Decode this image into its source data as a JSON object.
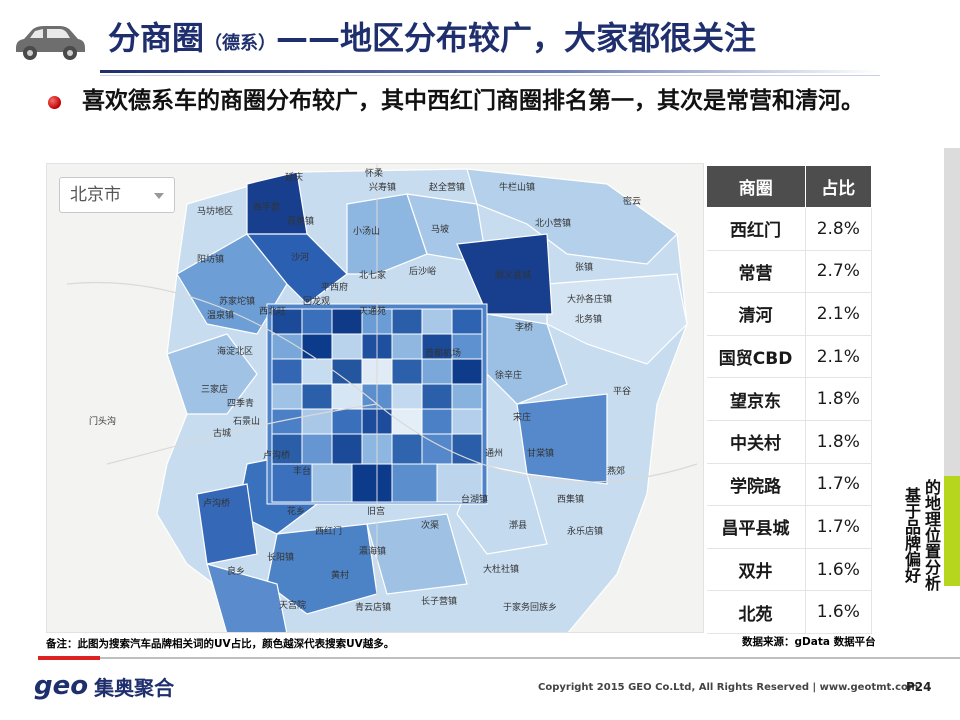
{
  "header": {
    "title_main": "分商圈",
    "title_sub": "（德系）",
    "title_rest": "——地区分布较广，大家都很关注"
  },
  "bullet": {
    "text": "喜欢德系车的商圈分布较广，其中西红门商圈排名第一，其次是常营和清河。"
  },
  "map": {
    "city_select": "北京市",
    "places": [
      {
        "label": "延庆"
      },
      {
        "label": "怀柔"
      },
      {
        "label": "兴寿镇"
      },
      {
        "label": "赵全营镇"
      },
      {
        "label": "牛栏山镇"
      },
      {
        "label": "马坊地区"
      },
      {
        "label": "西手营"
      },
      {
        "label": "小汤山"
      },
      {
        "label": "马坡"
      },
      {
        "label": "北小营镇"
      },
      {
        "label": "百善镇"
      },
      {
        "label": "阳坊镇"
      },
      {
        "label": "沙河"
      },
      {
        "label": "北七家"
      },
      {
        "label": "后沙峪"
      },
      {
        "label": "顺义县城"
      },
      {
        "label": "张镇"
      },
      {
        "label": "大孙各庄镇"
      },
      {
        "label": "北务镇"
      },
      {
        "label": "苏家坨镇"
      },
      {
        "label": "温泉镇"
      },
      {
        "label": "西北旺"
      },
      {
        "label": "回龙观"
      },
      {
        "label": "天通苑"
      },
      {
        "label": "平西府"
      },
      {
        "label": "李桥"
      },
      {
        "label": "海淀北区"
      },
      {
        "label": "三家店"
      },
      {
        "label": "四季青"
      },
      {
        "label": "首都机场"
      },
      {
        "label": "徐辛庄"
      },
      {
        "label": "宋庄"
      },
      {
        "label": "门头沟"
      },
      {
        "label": "古城"
      },
      {
        "label": "石景山"
      },
      {
        "label": "通州"
      },
      {
        "label": "甘棠镇"
      },
      {
        "label": "卢沟桥"
      },
      {
        "label": "丰台"
      },
      {
        "label": "台湖镇"
      },
      {
        "label": "西集镇"
      },
      {
        "label": "卢沟桥"
      },
      {
        "label": "花乡"
      },
      {
        "label": "旧宫"
      },
      {
        "label": "次渠"
      },
      {
        "label": "漷县"
      },
      {
        "label": "长阳镇"
      },
      {
        "label": "黄村"
      },
      {
        "label": "瀛海镇"
      },
      {
        "label": "大杜社镇"
      },
      {
        "label": "良乡"
      },
      {
        "label": "天宫院"
      },
      {
        "label": "青云店镇"
      },
      {
        "label": "长子营镇"
      },
      {
        "label": "于家务回族乡"
      },
      {
        "label": "密云"
      },
      {
        "label": "平谷"
      },
      {
        "label": "燕郊"
      },
      {
        "label": "永乐店镇"
      },
      {
        "label": "西红门"
      }
    ]
  },
  "table": {
    "headers": [
      "商圈",
      "占比"
    ],
    "rows": [
      {
        "name": "西红门",
        "value": "2.8%"
      },
      {
        "name": "常营",
        "value": "2.7%"
      },
      {
        "name": "清河",
        "value": "2.1%"
      },
      {
        "name": "国贸CBD",
        "value": "2.1%"
      },
      {
        "name": "望京东",
        "value": "1.8%"
      },
      {
        "name": "中关村",
        "value": "1.8%"
      },
      {
        "name": "学院路",
        "value": "1.7%"
      },
      {
        "name": "昌平县城",
        "value": "1.7%"
      },
      {
        "name": "双井",
        "value": "1.6%"
      },
      {
        "name": "北苑",
        "value": "1.6%"
      }
    ]
  },
  "side_label": {
    "col_a": "的地理位置分析",
    "col_b": "基于品牌偏好"
  },
  "notes": {
    "left": "备注：此图为搜索汽车品牌相关词的UV占比，颜色越深代表搜索UV越多。",
    "right": "数据来源：gData 数据平台"
  },
  "footer": {
    "logo_geo": "geo",
    "logo_cn": "集奥聚合",
    "copyright": "Copyright 2015 GEO Co.Ltd, All Rights Reserved  |  www.geotmt.com",
    "page": "P24"
  },
  "colors": {
    "title": "#1f2f6e",
    "dark_blue": "#0d3b8c",
    "mid_blue": "#3f77bf",
    "light_blue": "#a9c8e8",
    "table_header": "#4d4d4d",
    "accent_green": "#b6d61e"
  }
}
